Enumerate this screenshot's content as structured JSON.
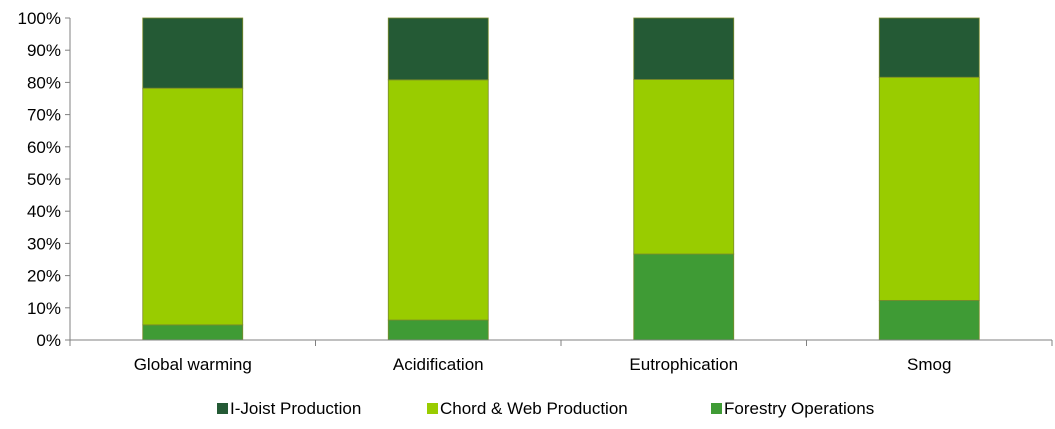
{
  "chart_data": {
    "type": "bar",
    "stacked": true,
    "categories": [
      "Global warming",
      "Acidification",
      "Eutrophication",
      "Smog"
    ],
    "series": [
      {
        "name": "Forestry Operations",
        "color": "#3f9b35",
        "values": [
          4.7,
          6.2,
          26.7,
          12.3
        ]
      },
      {
        "name": "Chord & Web Production",
        "color": "#99cc00",
        "values": [
          73.5,
          74.6,
          54.2,
          69.3
        ]
      },
      {
        "name": "I-Joist Production",
        "color": "#245a35",
        "values": [
          21.8,
          19.2,
          19.1,
          18.4
        ]
      }
    ],
    "ylim": [
      0,
      100
    ],
    "yticks": [
      "0%",
      "10%",
      "20%",
      "30%",
      "40%",
      "50%",
      "60%",
      "70%",
      "80%",
      "90%",
      "100%"
    ],
    "legend_order": [
      "I-Joist Production",
      "Chord & Web Production",
      "Forestry Operations"
    ],
    "legend_position": "bottom",
    "grid": false
  }
}
